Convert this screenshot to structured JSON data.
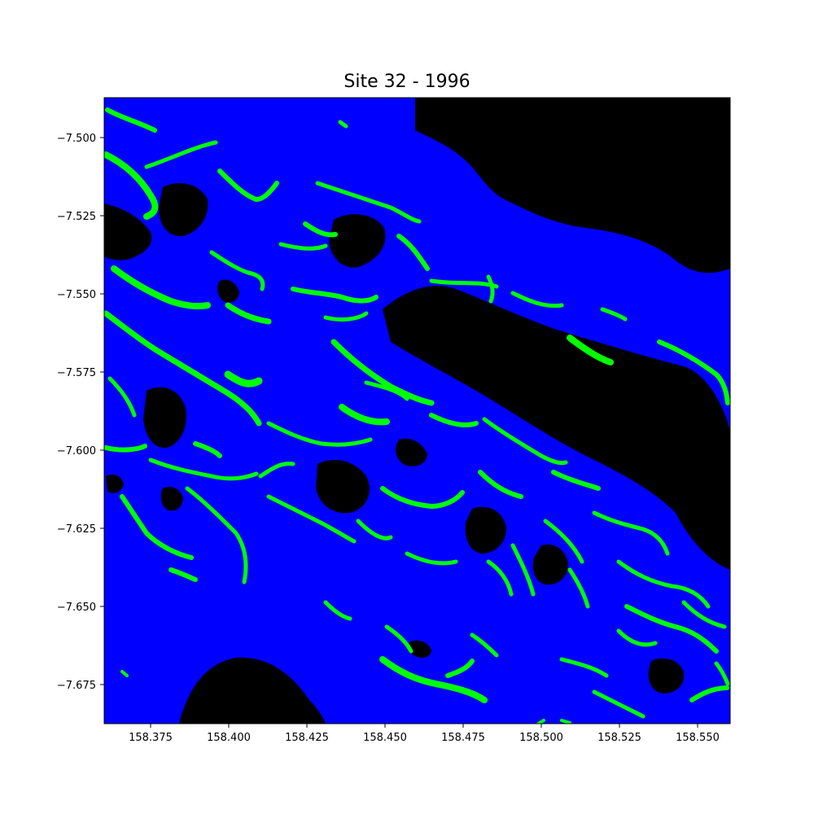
{
  "title": "Site 32 - 1996",
  "colors": {
    "background": "#000000",
    "buffer": "#0000ff",
    "vegetation": "#00ff00",
    "axes": "#000000"
  },
  "map": {
    "x_ticks": [
      "158.375",
      "158.400",
      "158.425",
      "158.450",
      "158.475",
      "158.500",
      "158.525",
      "158.550"
    ],
    "y_ticks": [
      "−7.500",
      "−7.525",
      "−7.550",
      "−7.575",
      "−7.600",
      "−7.625",
      "−7.650",
      "−7.675"
    ]
  }
}
